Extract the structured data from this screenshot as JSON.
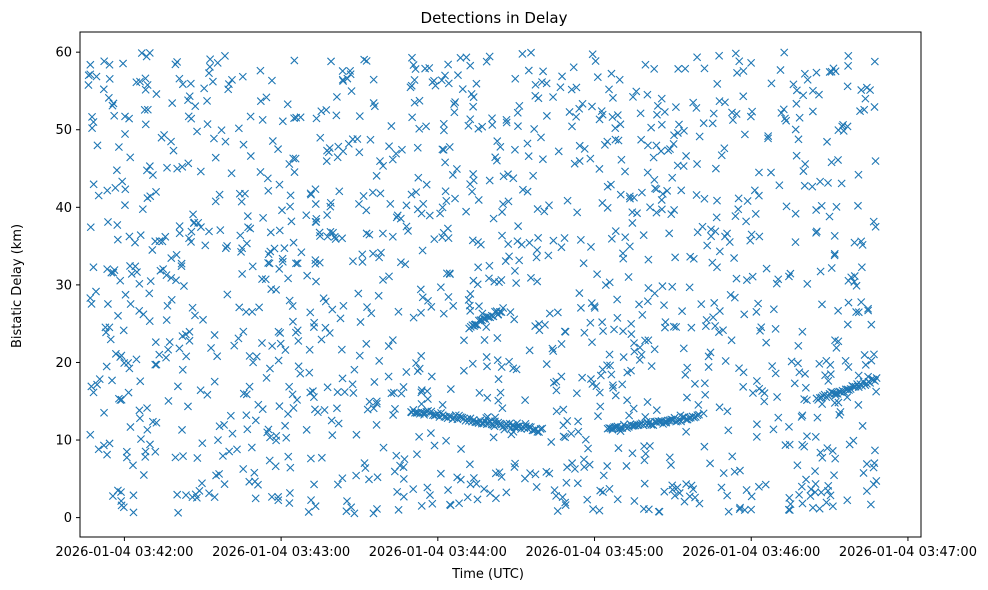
{
  "chart_data": {
    "type": "scatter",
    "title": "Detections in Delay",
    "xlabel": "Time (UTC)",
    "ylabel": "Bistatic Delay (km)",
    "x_ticks": [
      "2026-01-04 03:42:00",
      "2026-01-04 03:43:00",
      "2026-01-04 03:44:00",
      "2026-01-04 03:45:00",
      "2026-01-04 03:46:00",
      "2026-01-04 03:47:00"
    ],
    "y_ticks": [
      "0",
      "10",
      "20",
      "30",
      "40",
      "50",
      "60"
    ],
    "xlim": [
      "2026-01-04 03:41:43",
      "2026-01-04 03:47:05"
    ],
    "ylim": [
      -2.5,
      62.6
    ],
    "grid": false,
    "marker": "x",
    "color": "#1f77b4",
    "noise_detections": {
      "x_range": [
        "2026-01-04 03:41:46",
        "2026-01-04 03:46:48"
      ],
      "y_range": [
        0.5,
        60
      ],
      "approx_count": 1400
    },
    "tracks": [
      {
        "x_start": "2026-01-04 03:43:50",
        "y_start": 13.8,
        "x_end": "2026-01-04 03:44:40",
        "y_end": 11.2
      },
      {
        "x_start": "2026-01-04 03:45:05",
        "y_start": 11.4,
        "x_end": "2026-01-04 03:45:40",
        "y_end": 13.0
      },
      {
        "x_start": "2026-01-04 03:46:25",
        "y_start": 15.4,
        "x_end": "2026-01-04 03:46:48",
        "y_end": 17.8
      },
      {
        "x_start": "2026-01-04 03:44:12",
        "y_start": 24.5,
        "x_end": "2026-01-04 03:44:25",
        "y_end": 26.8
      }
    ]
  }
}
